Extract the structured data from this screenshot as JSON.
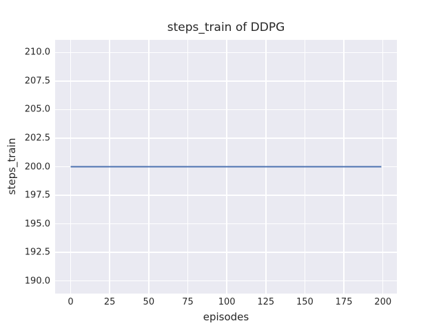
{
  "figure": {
    "title": "steps_train of DDPG",
    "xlabel": "episodes",
    "ylabel": "steps_train"
  },
  "chart_data": {
    "type": "line",
    "title": "steps_train of DDPG",
    "xlabel": "episodes",
    "ylabel": "steps_train",
    "x_ticks": [
      0,
      25,
      50,
      75,
      100,
      125,
      150,
      175,
      200
    ],
    "x_tick_labels": [
      "0",
      "25",
      "50",
      "75",
      "100",
      "125",
      "150",
      "175",
      "200"
    ],
    "y_ticks": [
      190.0,
      192.5,
      195.0,
      197.5,
      200.0,
      202.5,
      205.0,
      207.5,
      210.0
    ],
    "y_tick_labels": [
      "190.0",
      "192.5",
      "195.0",
      "197.5",
      "200.0",
      "202.5",
      "205.0",
      "207.5",
      "210.0"
    ],
    "xlim": [
      -9.95,
      208.95
    ],
    "ylim": [
      188.9,
      211.1
    ],
    "grid": true,
    "legend": "none",
    "series": [
      {
        "name": "steps_train",
        "color": "#4C72B0",
        "description": "constant value 200 steps for every training episode 0-199",
        "x": [
          0,
          199
        ],
        "y": [
          200,
          200
        ]
      }
    ],
    "style": {
      "fig_bg": "#FFFFFF",
      "plot_bg": "#EAEAF2",
      "grid_color": "#FFFFFF",
      "text_color": "#262626",
      "line_width": 2
    }
  }
}
